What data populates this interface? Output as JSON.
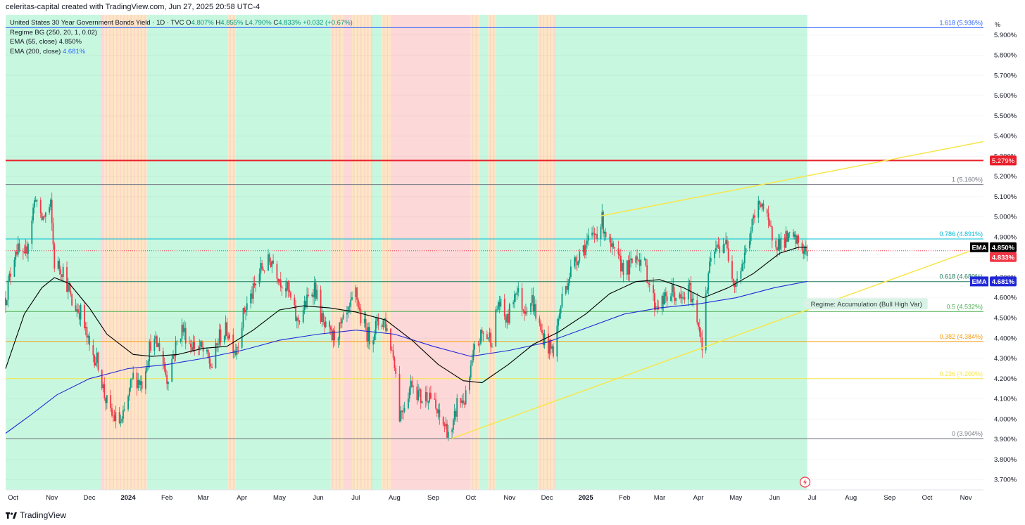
{
  "header": {
    "credit": "celeritas-capital created with TradingView.com, Jun 27, 2025 20:58 UTC-4"
  },
  "footer": {
    "brand": "TradingView"
  },
  "legend": {
    "symbol": "United States 30 Year Government Bonds Yield · 1D · TVC",
    "o_label": "O",
    "o_value": "4.807%",
    "h_label": "H",
    "h_value": "4.855%",
    "l_label": "L",
    "l_value": "4.790%",
    "c_label": "C",
    "c_value": "4.833%",
    "change": "+0.032 (+0.67%)",
    "regime_ind": "Regime BG (250, 20, 1, 0.02)",
    "ema55_label": "EMA (55, close)",
    "ema55_value": "4.850%",
    "ema200_label": "EMA (200, close)",
    "ema200_value": "4.681%"
  },
  "colors": {
    "bull_bg": "#c8f7e0",
    "bear_bg": "#fdd8d8",
    "neutral_bg": "#fde6c4",
    "up_candle": "#089981",
    "down_candle": "#f23645",
    "ema55": "#000000",
    "ema200": "#2128d6",
    "trend": "#f7e64a",
    "resistance": "#e8212b"
  },
  "chart_data": {
    "type": "candlestick",
    "y_unit": "%",
    "ylim": [
      3.65,
      6.0
    ],
    "x_range": [
      "2023-09-25",
      "2025-11-15"
    ],
    "last_bar": "2025-06-27",
    "y_ticks": [
      "3.700%",
      "3.800%",
      "3.900%",
      "4.000%",
      "4.100%",
      "4.200%",
      "4.300%",
      "4.400%",
      "4.500%",
      "4.600%",
      "4.700%",
      "4.800%",
      "4.900%",
      "5.000%",
      "5.100%",
      "5.200%",
      "5.300%",
      "5.400%",
      "5.500%",
      "5.600%",
      "5.700%",
      "5.800%",
      "5.900%"
    ],
    "x_ticks": [
      {
        "label": "Oct",
        "date": "2023-10-01"
      },
      {
        "label": "Nov",
        "date": "2023-11-01"
      },
      {
        "label": "Dec",
        "date": "2023-12-01"
      },
      {
        "label": "2024",
        "date": "2024-01-01",
        "bold": true
      },
      {
        "label": "Feb",
        "date": "2024-02-01"
      },
      {
        "label": "Mar",
        "date": "2024-03-01"
      },
      {
        "label": "Apr",
        "date": "2024-04-01"
      },
      {
        "label": "May",
        "date": "2024-05-01"
      },
      {
        "label": "Jun",
        "date": "2024-06-01"
      },
      {
        "label": "Jul",
        "date": "2024-07-01"
      },
      {
        "label": "Aug",
        "date": "2024-08-01"
      },
      {
        "label": "Sep",
        "date": "2024-09-01"
      },
      {
        "label": "Oct",
        "date": "2024-10-01"
      },
      {
        "label": "Nov",
        "date": "2024-11-01"
      },
      {
        "label": "Dec",
        "date": "2024-12-01"
      },
      {
        "label": "2025",
        "date": "2025-01-01",
        "bold": true
      },
      {
        "label": "Feb",
        "date": "2025-02-01"
      },
      {
        "label": "Mar",
        "date": "2025-03-01"
      },
      {
        "label": "Apr",
        "date": "2025-04-01"
      },
      {
        "label": "May",
        "date": "2025-05-01"
      },
      {
        "label": "Jun",
        "date": "2025-06-01"
      },
      {
        "label": "Jul",
        "date": "2025-07-01"
      },
      {
        "label": "Aug",
        "date": "2025-08-01"
      },
      {
        "label": "Sep",
        "date": "2025-09-01"
      },
      {
        "label": "Oct",
        "date": "2025-10-01"
      },
      {
        "label": "Nov",
        "date": "2025-11-01"
      }
    ],
    "close_path": [
      [
        "2023-09-25",
        4.6
      ],
      [
        "2023-10-03",
        4.85
      ],
      [
        "2023-10-10",
        4.78
      ],
      [
        "2023-10-19",
        5.11
      ],
      [
        "2023-10-23",
        4.98
      ],
      [
        "2023-10-31",
        5.05
      ],
      [
        "2023-11-03",
        4.77
      ],
      [
        "2023-11-10",
        4.74
      ],
      [
        "2023-11-17",
        4.57
      ],
      [
        "2023-11-24",
        4.53
      ],
      [
        "2023-12-01",
        4.35
      ],
      [
        "2023-12-08",
        4.28
      ],
      [
        "2023-12-13",
        4.12
      ],
      [
        "2023-12-18",
        4.02
      ],
      [
        "2023-12-27",
        3.98
      ],
      [
        "2024-01-05",
        4.21
      ],
      [
        "2024-01-12",
        4.18
      ],
      [
        "2024-01-19",
        4.38
      ],
      [
        "2024-01-26",
        4.36
      ],
      [
        "2024-02-01",
        4.2
      ],
      [
        "2024-02-06",
        4.32
      ],
      [
        "2024-02-13",
        4.45
      ],
      [
        "2024-02-20",
        4.37
      ],
      [
        "2024-02-28",
        4.35
      ],
      [
        "2024-03-08",
        4.26
      ],
      [
        "2024-03-14",
        4.41
      ],
      [
        "2024-03-20",
        4.44
      ],
      [
        "2024-03-27",
        4.34
      ],
      [
        "2024-04-03",
        4.54
      ],
      [
        "2024-04-10",
        4.63
      ],
      [
        "2024-04-16",
        4.74
      ],
      [
        "2024-04-25",
        4.79
      ],
      [
        "2024-05-01",
        4.7
      ],
      [
        "2024-05-08",
        4.63
      ],
      [
        "2024-05-15",
        4.48
      ],
      [
        "2024-05-22",
        4.57
      ],
      [
        "2024-05-29",
        4.66
      ],
      [
        "2024-06-05",
        4.46
      ],
      [
        "2024-06-12",
        4.4
      ],
      [
        "2024-06-18",
        4.44
      ],
      [
        "2024-06-26",
        4.53
      ],
      [
        "2024-07-01",
        4.63
      ],
      [
        "2024-07-05",
        4.5
      ],
      [
        "2024-07-12",
        4.4
      ],
      [
        "2024-07-18",
        4.47
      ],
      [
        "2024-07-24",
        4.49
      ],
      [
        "2024-08-01",
        4.29
      ],
      [
        "2024-08-05",
        4.02
      ],
      [
        "2024-08-09",
        4.08
      ],
      [
        "2024-08-15",
        4.19
      ],
      [
        "2024-08-22",
        4.1
      ],
      [
        "2024-08-29",
        4.13
      ],
      [
        "2024-09-05",
        4.01
      ],
      [
        "2024-09-11",
        3.96
      ],
      [
        "2024-09-16",
        3.92
      ],
      [
        "2024-09-20",
        4.08
      ],
      [
        "2024-09-27",
        4.1
      ],
      [
        "2024-10-04",
        4.34
      ],
      [
        "2024-10-10",
        4.42
      ],
      [
        "2024-10-18",
        4.4
      ],
      [
        "2024-10-23",
        4.58
      ],
      [
        "2024-10-30",
        4.48
      ],
      [
        "2024-11-06",
        4.65
      ],
      [
        "2024-11-12",
        4.55
      ],
      [
        "2024-11-19",
        4.59
      ],
      [
        "2024-11-26",
        4.43
      ],
      [
        "2024-12-03",
        4.35
      ],
      [
        "2024-12-06",
        4.34
      ],
      [
        "2024-12-13",
        4.6
      ],
      [
        "2024-12-19",
        4.72
      ],
      [
        "2024-12-27",
        4.83
      ],
      [
        "2025-01-07",
        4.9
      ],
      [
        "2025-01-14",
        4.98
      ],
      [
        "2025-01-21",
        4.84
      ],
      [
        "2025-01-28",
        4.77
      ],
      [
        "2025-02-04",
        4.74
      ],
      [
        "2025-02-11",
        4.82
      ],
      [
        "2025-02-18",
        4.74
      ],
      [
        "2025-02-25",
        4.57
      ],
      [
        "2025-03-04",
        4.58
      ],
      [
        "2025-03-11",
        4.63
      ],
      [
        "2025-03-18",
        4.58
      ],
      [
        "2025-03-25",
        4.64
      ],
      [
        "2025-04-01",
        4.48
      ],
      [
        "2025-04-04",
        4.38
      ],
      [
        "2025-04-09",
        4.72
      ],
      [
        "2025-04-14",
        4.83
      ],
      [
        "2025-04-22",
        4.88
      ],
      [
        "2025-04-30",
        4.68
      ],
      [
        "2025-05-07",
        4.78
      ],
      [
        "2025-05-14",
        4.96
      ],
      [
        "2025-05-21",
        5.09
      ],
      [
        "2025-05-28",
        4.93
      ],
      [
        "2025-06-04",
        4.87
      ],
      [
        "2025-06-11",
        4.89
      ],
      [
        "2025-06-18",
        4.88
      ],
      [
        "2025-06-24",
        4.84
      ],
      [
        "2025-06-27",
        4.833
      ]
    ],
    "ema55_path": [
      [
        "2023-09-25",
        4.25
      ],
      [
        "2023-10-10",
        4.52
      ],
      [
        "2023-10-24",
        4.65
      ],
      [
        "2023-11-03",
        4.7
      ],
      [
        "2023-11-15",
        4.67
      ],
      [
        "2023-12-01",
        4.55
      ],
      [
        "2023-12-15",
        4.42
      ],
      [
        "2024-01-05",
        4.32
      ],
      [
        "2024-01-20",
        4.31
      ],
      [
        "2024-02-10",
        4.32
      ],
      [
        "2024-03-01",
        4.35
      ],
      [
        "2024-03-20",
        4.36
      ],
      [
        "2024-04-10",
        4.44
      ],
      [
        "2024-05-01",
        4.54
      ],
      [
        "2024-05-20",
        4.56
      ],
      [
        "2024-06-10",
        4.55
      ],
      [
        "2024-07-01",
        4.53
      ],
      [
        "2024-07-25",
        4.49
      ],
      [
        "2024-08-15",
        4.39
      ],
      [
        "2024-09-05",
        4.27
      ],
      [
        "2024-09-25",
        4.19
      ],
      [
        "2024-10-10",
        4.18
      ],
      [
        "2024-10-31",
        4.27
      ],
      [
        "2024-11-20",
        4.37
      ],
      [
        "2024-12-10",
        4.43
      ],
      [
        "2025-01-01",
        4.52
      ],
      [
        "2025-01-20",
        4.62
      ],
      [
        "2025-02-10",
        4.68
      ],
      [
        "2025-03-01",
        4.69
      ],
      [
        "2025-03-20",
        4.65
      ],
      [
        "2025-04-05",
        4.6
      ],
      [
        "2025-04-25",
        4.65
      ],
      [
        "2025-05-15",
        4.72
      ],
      [
        "2025-06-05",
        4.82
      ],
      [
        "2025-06-20",
        4.85
      ],
      [
        "2025-06-27",
        4.85
      ]
    ],
    "ema200_path": [
      [
        "2023-09-25",
        3.93
      ],
      [
        "2023-10-15",
        4.02
      ],
      [
        "2023-11-05",
        4.12
      ],
      [
        "2023-12-01",
        4.2
      ],
      [
        "2024-01-01",
        4.25
      ],
      [
        "2024-02-01",
        4.27
      ],
      [
        "2024-03-01",
        4.3
      ],
      [
        "2024-04-01",
        4.34
      ],
      [
        "2024-05-01",
        4.39
      ],
      [
        "2024-06-01",
        4.42
      ],
      [
        "2024-07-01",
        4.44
      ],
      [
        "2024-08-01",
        4.42
      ],
      [
        "2024-09-01",
        4.36
      ],
      [
        "2024-10-01",
        4.31
      ],
      [
        "2024-11-01",
        4.34
      ],
      [
        "2024-12-01",
        4.38
      ],
      [
        "2025-01-01",
        4.45
      ],
      [
        "2025-02-01",
        4.52
      ],
      [
        "2025-03-01",
        4.55
      ],
      [
        "2025-04-01",
        4.57
      ],
      [
        "2025-05-01",
        4.6
      ],
      [
        "2025-06-01",
        4.65
      ],
      [
        "2025-06-27",
        4.681
      ]
    ],
    "regimes": [
      {
        "start": "2023-09-25",
        "end": "2023-12-10",
        "type": "bull"
      },
      {
        "start": "2023-12-10",
        "end": "2023-12-13",
        "type": "bear"
      },
      {
        "start": "2023-12-13",
        "end": "2024-01-16",
        "type": "neutral"
      },
      {
        "start": "2024-01-16",
        "end": "2024-03-21",
        "type": "bull"
      },
      {
        "start": "2024-03-21",
        "end": "2024-03-27",
        "type": "neutral"
      },
      {
        "start": "2024-03-27",
        "end": "2024-06-11",
        "type": "bull"
      },
      {
        "start": "2024-06-11",
        "end": "2024-06-21",
        "type": "neutral"
      },
      {
        "start": "2024-06-21",
        "end": "2024-06-28",
        "type": "bear"
      },
      {
        "start": "2024-06-28",
        "end": "2024-07-14",
        "type": "neutral"
      },
      {
        "start": "2024-07-14",
        "end": "2024-07-22",
        "type": "bull"
      },
      {
        "start": "2024-07-22",
        "end": "2024-07-29",
        "type": "neutral"
      },
      {
        "start": "2024-07-29",
        "end": "2024-10-01",
        "type": "bear"
      },
      {
        "start": "2024-10-01",
        "end": "2024-10-08",
        "type": "neutral"
      },
      {
        "start": "2024-10-08",
        "end": "2024-10-15",
        "type": "bull"
      },
      {
        "start": "2024-10-15",
        "end": "2024-10-21",
        "type": "neutral"
      },
      {
        "start": "2024-10-21",
        "end": "2024-11-24",
        "type": "bull"
      },
      {
        "start": "2024-11-24",
        "end": "2024-12-07",
        "type": "neutral"
      },
      {
        "start": "2024-12-07",
        "end": "2025-06-30",
        "type": "bull"
      }
    ],
    "levels": [
      {
        "label": "1.618 (5.936%)",
        "value": 5.936,
        "color": "#2962ff"
      },
      {
        "label": "1 (5.160%)",
        "value": 5.16,
        "color": "#787b86"
      },
      {
        "label": "0.786 (4.891%)",
        "value": 4.891,
        "color": "#00bcd4"
      },
      {
        "label": "0.618 (4.680%)",
        "value": 4.68,
        "color": "#1b7a5c"
      },
      {
        "label": "0.5 (4.532%)",
        "value": 4.532,
        "color": "#4caf50"
      },
      {
        "label": "0.382 (4.384%)",
        "value": 4.384,
        "color": "#f59d0e"
      },
      {
        "label": "0.236 (4.200%)",
        "value": 4.2,
        "color": "#f7e64a"
      },
      {
        "label": "0 (3.904%)",
        "value": 3.904,
        "color": "#787b86"
      }
    ],
    "resistance": {
      "label": "5.279%",
      "value": 5.279
    },
    "trendlines": [
      {
        "from": [
          "2025-01-13",
          5.005
        ],
        "to": [
          "2025-05-22",
          5.16
        ],
        "extend_to": "2025-11-15"
      },
      {
        "from": [
          "2024-09-16",
          3.905
        ],
        "to": [
          "2025-06-27",
          4.54
        ],
        "extend_to": "2025-11-15"
      }
    ],
    "tags": [
      {
        "label": "EMA",
        "value_text": "4.850%",
        "value": 4.85,
        "bg": "#000000"
      },
      {
        "label": "",
        "value_text": "4.833%",
        "value": 4.833,
        "bg": "#f23645"
      },
      {
        "label": "EMA",
        "value_text": "4.681%",
        "value": 4.681,
        "bg": "#2128d6"
      }
    ],
    "annotation": {
      "text": "Regime: Accumulation (Bull High Var)",
      "at": [
        "2025-07-01",
        4.57
      ]
    }
  }
}
